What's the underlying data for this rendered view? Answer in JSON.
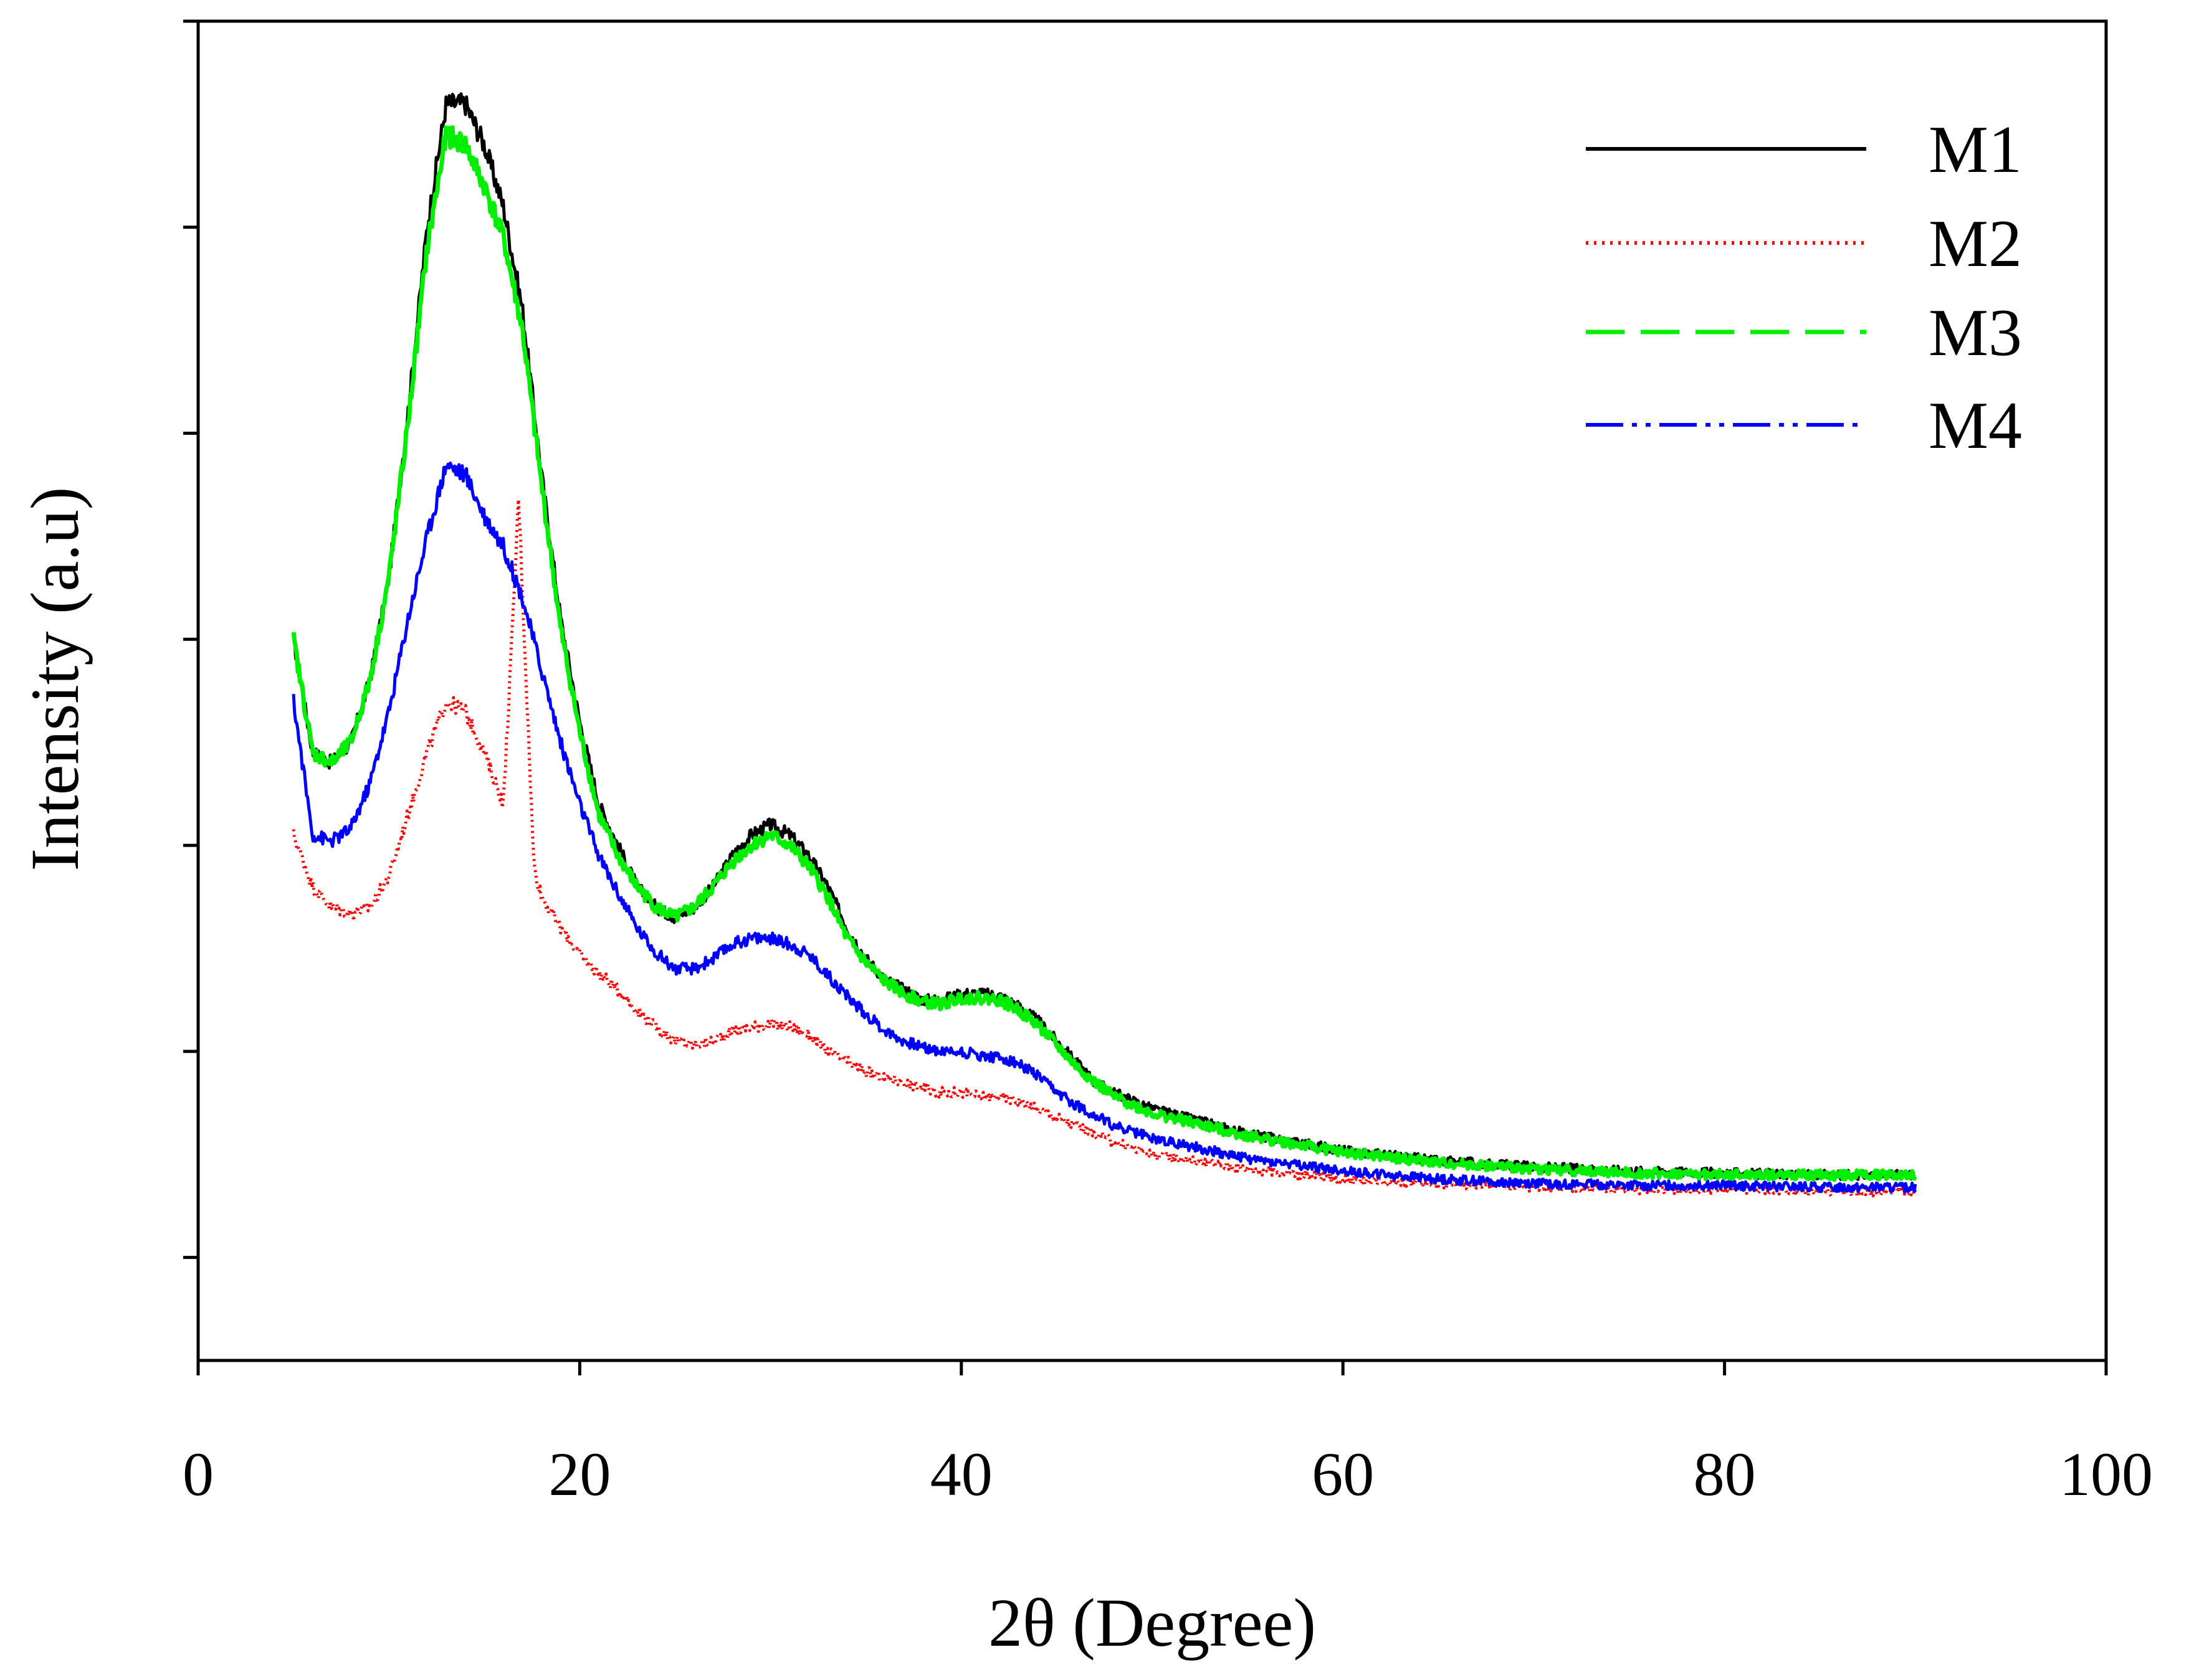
{
  "chart_data": {
    "type": "line",
    "title": "",
    "xlabel": "2θ (Degree)",
    "ylabel": "Intensity (a.u)",
    "xlim": [
      0,
      100
    ],
    "ylim": [
      0,
      6.5
    ],
    "xticks": [
      0,
      20,
      40,
      60,
      80,
      100
    ],
    "yticks": [
      0.5,
      1.5,
      2.5,
      3.5,
      4.5,
      5.5,
      6.5
    ],
    "x_tick_labels": [
      "0",
      "20",
      "40",
      "60",
      "80",
      "100"
    ],
    "y_tick_labels_shown": false,
    "grid": false,
    "legend_position": "top-right",
    "series": [
      {
        "name": "M1",
        "color": "#000000",
        "style": "solid",
        "points": [
          [
            5,
            3.5
          ],
          [
            6,
            2.95
          ],
          [
            7,
            2.9
          ],
          [
            8,
            3.0
          ],
          [
            9,
            3.3
          ],
          [
            10,
            3.8
          ],
          [
            11,
            4.6
          ],
          [
            12,
            5.5
          ],
          [
            13,
            6.1
          ],
          [
            14,
            6.1
          ],
          [
            15,
            5.9
          ],
          [
            16,
            5.6
          ],
          [
            17,
            5.1
          ],
          [
            18,
            4.3
          ],
          [
            19,
            3.6
          ],
          [
            20,
            3.1
          ],
          [
            21,
            2.7
          ],
          [
            22,
            2.5
          ],
          [
            23,
            2.3
          ],
          [
            24,
            2.2
          ],
          [
            25,
            2.15
          ],
          [
            26,
            2.2
          ],
          [
            27,
            2.3
          ],
          [
            28,
            2.45
          ],
          [
            29,
            2.55
          ],
          [
            30,
            2.6
          ],
          [
            31,
            2.55
          ],
          [
            32,
            2.45
          ],
          [
            33,
            2.3
          ],
          [
            34,
            2.1
          ],
          [
            35,
            1.95
          ],
          [
            36,
            1.85
          ],
          [
            37,
            1.8
          ],
          [
            38,
            1.75
          ],
          [
            39,
            1.75
          ],
          [
            40,
            1.78
          ],
          [
            41,
            1.78
          ],
          [
            42,
            1.77
          ],
          [
            43,
            1.72
          ],
          [
            44,
            1.65
          ],
          [
            45,
            1.55
          ],
          [
            46,
            1.45
          ],
          [
            47,
            1.35
          ],
          [
            48,
            1.3
          ],
          [
            50,
            1.22
          ],
          [
            55,
            1.1
          ],
          [
            60,
            1.02
          ],
          [
            65,
            0.97
          ],
          [
            70,
            0.94
          ],
          [
            75,
            0.92
          ],
          [
            80,
            0.91
          ],
          [
            85,
            0.9
          ],
          [
            90,
            0.9
          ]
        ]
      },
      {
        "name": "M2",
        "color": "#ff0000",
        "style": "dotted",
        "points": [
          [
            5,
            2.55
          ],
          [
            6,
            2.3
          ],
          [
            7,
            2.2
          ],
          [
            8,
            2.17
          ],
          [
            9,
            2.2
          ],
          [
            10,
            2.35
          ],
          [
            11,
            2.65
          ],
          [
            12,
            2.95
          ],
          [
            13,
            3.2
          ],
          [
            14,
            3.15
          ],
          [
            15,
            2.95
          ],
          [
            16,
            2.7
          ],
          [
            16.5,
            3.6
          ],
          [
            16.8,
            4.2
          ],
          [
            17.1,
            3.5
          ],
          [
            17.6,
            2.4
          ],
          [
            18,
            2.25
          ],
          [
            19,
            2.1
          ],
          [
            20,
            1.97
          ],
          [
            21,
            1.88
          ],
          [
            22,
            1.8
          ],
          [
            23,
            1.7
          ],
          [
            24,
            1.62
          ],
          [
            25,
            1.55
          ],
          [
            26,
            1.53
          ],
          [
            27,
            1.55
          ],
          [
            28,
            1.6
          ],
          [
            29,
            1.62
          ],
          [
            30,
            1.63
          ],
          [
            31,
            1.62
          ],
          [
            32,
            1.58
          ],
          [
            33,
            1.5
          ],
          [
            34,
            1.45
          ],
          [
            35,
            1.4
          ],
          [
            36,
            1.37
          ],
          [
            37,
            1.35
          ],
          [
            38,
            1.32
          ],
          [
            39,
            1.3
          ],
          [
            40,
            1.3
          ],
          [
            41,
            1.28
          ],
          [
            42,
            1.28
          ],
          [
            43,
            1.26
          ],
          [
            44,
            1.22
          ],
          [
            45,
            1.18
          ],
          [
            46,
            1.14
          ],
          [
            48,
            1.06
          ],
          [
            50,
            1.0
          ],
          [
            55,
            0.93
          ],
          [
            60,
            0.88
          ],
          [
            65,
            0.86
          ],
          [
            70,
            0.84
          ],
          [
            75,
            0.83
          ],
          [
            80,
            0.83
          ],
          [
            85,
            0.82
          ],
          [
            90,
            0.82
          ]
        ]
      },
      {
        "name": "M3",
        "color": "#00ee00",
        "style": "dashed",
        "points": [
          [
            5,
            3.5
          ],
          [
            6,
            2.95
          ],
          [
            7,
            2.9
          ],
          [
            8,
            3.0
          ],
          [
            9,
            3.3
          ],
          [
            10,
            3.8
          ],
          [
            11,
            4.55
          ],
          [
            12,
            5.4
          ],
          [
            13,
            5.95
          ],
          [
            14,
            5.9
          ],
          [
            15,
            5.7
          ],
          [
            16,
            5.45
          ],
          [
            17,
            5.0
          ],
          [
            18,
            4.25
          ],
          [
            19,
            3.55
          ],
          [
            20,
            3.05
          ],
          [
            21,
            2.65
          ],
          [
            22,
            2.45
          ],
          [
            23,
            2.3
          ],
          [
            24,
            2.2
          ],
          [
            25,
            2.15
          ],
          [
            26,
            2.2
          ],
          [
            27,
            2.3
          ],
          [
            28,
            2.42
          ],
          [
            29,
            2.5
          ],
          [
            30,
            2.55
          ],
          [
            31,
            2.5
          ],
          [
            32,
            2.4
          ],
          [
            33,
            2.25
          ],
          [
            34,
            2.05
          ],
          [
            35,
            1.93
          ],
          [
            36,
            1.84
          ],
          [
            37,
            1.78
          ],
          [
            38,
            1.74
          ],
          [
            39,
            1.73
          ],
          [
            40,
            1.76
          ],
          [
            41,
            1.76
          ],
          [
            42,
            1.75
          ],
          [
            43,
            1.7
          ],
          [
            44,
            1.63
          ],
          [
            45,
            1.53
          ],
          [
            46,
            1.43
          ],
          [
            47,
            1.35
          ],
          [
            48,
            1.28
          ],
          [
            50,
            1.2
          ],
          [
            55,
            1.09
          ],
          [
            60,
            1.01
          ],
          [
            65,
            0.96
          ],
          [
            70,
            0.93
          ],
          [
            75,
            0.91
          ],
          [
            80,
            0.9
          ],
          [
            85,
            0.9
          ],
          [
            90,
            0.9
          ]
        ]
      },
      {
        "name": "M4",
        "color": "#0000ff",
        "style": "dash-dot-dot",
        "points": [
          [
            5,
            3.2
          ],
          [
            6,
            2.55
          ],
          [
            7,
            2.52
          ],
          [
            8,
            2.58
          ],
          [
            9,
            2.8
          ],
          [
            10,
            3.15
          ],
          [
            11,
            3.6
          ],
          [
            12,
            4.0
          ],
          [
            13,
            4.35
          ],
          [
            14,
            4.3
          ],
          [
            15,
            4.1
          ],
          [
            16,
            3.95
          ],
          [
            17,
            3.7
          ],
          [
            18,
            3.35
          ],
          [
            19,
            3.0
          ],
          [
            20,
            2.7
          ],
          [
            21,
            2.45
          ],
          [
            22,
            2.27
          ],
          [
            23,
            2.1
          ],
          [
            24,
            1.98
          ],
          [
            25,
            1.9
          ],
          [
            26,
            1.9
          ],
          [
            27,
            1.95
          ],
          [
            28,
            2.02
          ],
          [
            29,
            2.05
          ],
          [
            30,
            2.05
          ],
          [
            31,
            2.02
          ],
          [
            32,
            1.97
          ],
          [
            33,
            1.87
          ],
          [
            34,
            1.77
          ],
          [
            35,
            1.68
          ],
          [
            36,
            1.6
          ],
          [
            37,
            1.55
          ],
          [
            38,
            1.52
          ],
          [
            39,
            1.5
          ],
          [
            40,
            1.5
          ],
          [
            41,
            1.48
          ],
          [
            42,
            1.47
          ],
          [
            43,
            1.44
          ],
          [
            44,
            1.38
          ],
          [
            45,
            1.3
          ],
          [
            46,
            1.24
          ],
          [
            48,
            1.14
          ],
          [
            50,
            1.08
          ],
          [
            55,
            0.98
          ],
          [
            60,
            0.92
          ],
          [
            65,
            0.88
          ],
          [
            70,
            0.86
          ],
          [
            75,
            0.85
          ],
          [
            80,
            0.85
          ],
          [
            85,
            0.84
          ],
          [
            90,
            0.84
          ]
        ]
      }
    ]
  }
}
